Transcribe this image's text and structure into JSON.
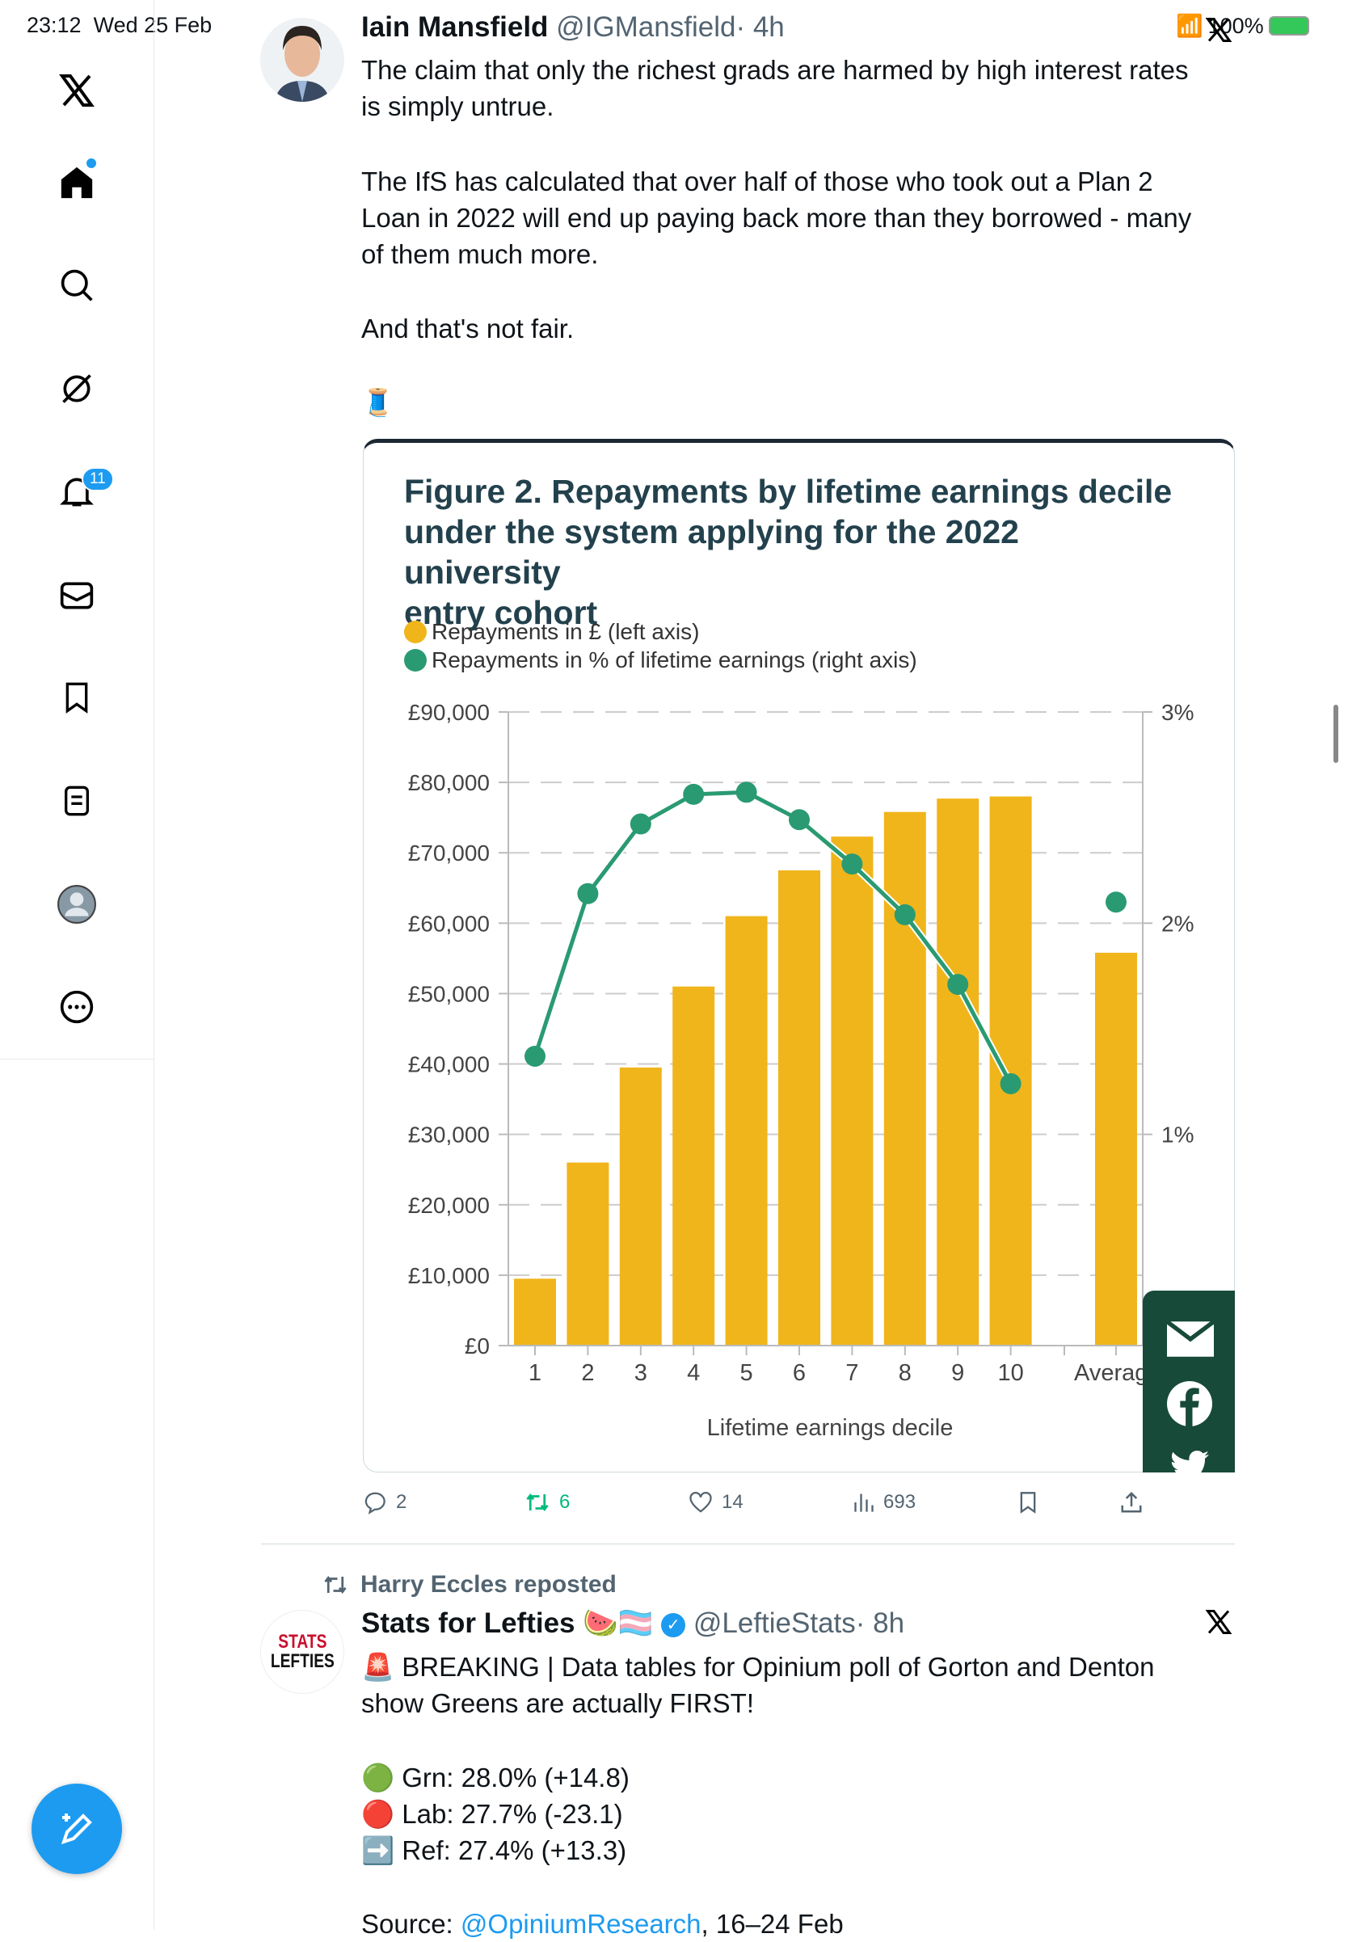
{
  "status_bar": {
    "time": "23:12",
    "date": "Wed 25 Feb",
    "battery": "100%"
  },
  "sidebar": {
    "items": [
      {
        "icon": "x-logo-icon"
      },
      {
        "icon": "home-icon"
      },
      {
        "icon": "search-icon"
      },
      {
        "icon": "grok-icon"
      },
      {
        "icon": "bell-icon",
        "badge": "11"
      },
      {
        "icon": "mail-icon"
      },
      {
        "icon": "bookmark-icon"
      },
      {
        "icon": "lists-icon"
      },
      {
        "icon": "profile-icon"
      },
      {
        "icon": "more-icon"
      }
    ],
    "compose_icon": "compose-icon",
    "accent": "#1d9bf0"
  },
  "tweet1": {
    "name": "Iain Mansfield",
    "handle": "@IGMansfield",
    "time": "· 4h",
    "lines": [
      "The claim that only the richest grads are harmed by high interest rates",
      "is simply untrue.",
      "The IfS has calculated that over half of those who took out a Plan 2",
      "Loan in 2022 will end up paying back more than they borrowed - many",
      "of them much more.",
      "And that's not fair.",
      "🧵"
    ],
    "stats": {
      "replies": "2",
      "reposts": "6",
      "likes": "14",
      "views": "693"
    }
  },
  "chart_data": {
    "type": "bar",
    "title": "Figure 2. Repayments by lifetime earnings decile under the system applying for the 2022 university entry cohort",
    "title_lines": [
      "Figure 2. Repayments by lifetime earnings decile",
      "under the system applying for the 2022 university",
      "entry cohort"
    ],
    "categories": [
      "1",
      "2",
      "3",
      "4",
      "5",
      "6",
      "7",
      "8",
      "9",
      "10",
      "Averag"
    ],
    "xlabel": "Lifetime earnings decile",
    "series": [
      {
        "name": "Repayments in £ (left axis)",
        "type": "bar",
        "color": "#f0b51b",
        "values": [
          9500,
          26000,
          39500,
          51000,
          61000,
          67500,
          72300,
          75800,
          77700,
          78000,
          55800
        ]
      },
      {
        "name": "Repayments in % of lifetime earnings (right axis)",
        "type": "line",
        "color": "#2a9a72",
        "values": [
          1.37,
          2.14,
          2.47,
          2.61,
          2.62,
          2.49,
          2.28,
          2.04,
          1.71,
          1.24,
          2.1
        ]
      }
    ],
    "ylim": [
      0,
      90000
    ],
    "y2lim": [
      0,
      3
    ],
    "yticks": [
      "£0",
      "£10,000",
      "£20,000",
      "£30,000",
      "£40,000",
      "£50,000",
      "£60,000",
      "£70,000",
      "£80,000",
      "£90,000"
    ],
    "y2ticks": [
      "1%",
      "2%",
      "3%"
    ],
    "grid": true,
    "legend": "top-left"
  },
  "tweet2": {
    "repost_by": "Harry Eccles reposted",
    "name": "Stats for Lefties",
    "emojis": "🍉🏳️‍⚧️",
    "handle": "@LeftieStats",
    "time": "· 8h",
    "avatar_text": "STATS LEFTIES",
    "lines": [
      "🚨 BREAKING | Data tables for Opinium poll of Gorton and Denton",
      "show Greens are actually FIRST!",
      "🟢 Grn: 28.0% (+14.8)",
      "🔴 Lab: 27.7% (-23.1)",
      "➡️ Ref: 27.4% (+13.3)"
    ],
    "source_prefix": "Source: ",
    "source_link": "@OpiniumResearch",
    "source_suffix": ", 16–24 Feb"
  }
}
